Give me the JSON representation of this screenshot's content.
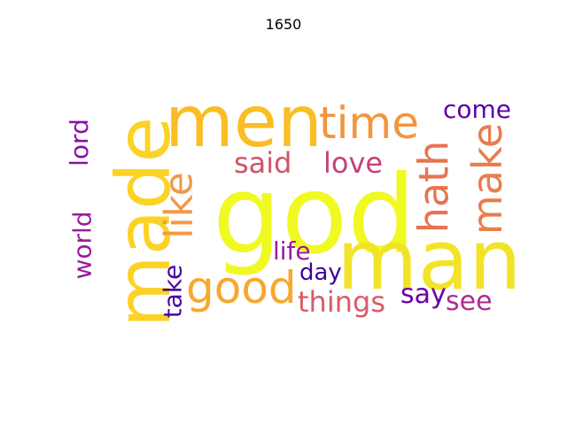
{
  "title": "1650",
  "words": [
    {
      "text": "god",
      "color": "#f0f921",
      "vertical": false
    },
    {
      "text": "man",
      "color": "#f3e328",
      "vertical": false
    },
    {
      "text": "men",
      "color": "#fbbd24",
      "vertical": false
    },
    {
      "text": "made",
      "color": "#fcd225",
      "vertical": true
    },
    {
      "text": "time",
      "color": "#f3953e",
      "vertical": false
    },
    {
      "text": "good",
      "color": "#f8a82c",
      "vertical": false
    },
    {
      "text": "like",
      "color": "#f39847",
      "vertical": true
    },
    {
      "text": "hath",
      "color": "#e8734f",
      "vertical": true
    },
    {
      "text": "make",
      "color": "#e97d4d",
      "vertical": true
    },
    {
      "text": "come",
      "color": "#5a00a5",
      "vertical": false
    },
    {
      "text": "said",
      "color": "#cf5466",
      "vertical": false
    },
    {
      "text": "love",
      "color": "#c6417a",
      "vertical": false
    },
    {
      "text": "lord",
      "color": "#8a0ea5",
      "vertical": true
    },
    {
      "text": "world",
      "color": "#9a1b9c",
      "vertical": true
    },
    {
      "text": "life",
      "color": "#9c1a9d",
      "vertical": false
    },
    {
      "text": "take",
      "color": "#4a02a0",
      "vertical": true
    },
    {
      "text": "day",
      "color": "#3f049c",
      "vertical": false
    },
    {
      "text": "things",
      "color": "#dc5a67",
      "vertical": false
    },
    {
      "text": "say",
      "color": "#6a00a8",
      "vertical": false
    },
    {
      "text": "see",
      "color": "#b22b8f",
      "vertical": false
    }
  ]
}
